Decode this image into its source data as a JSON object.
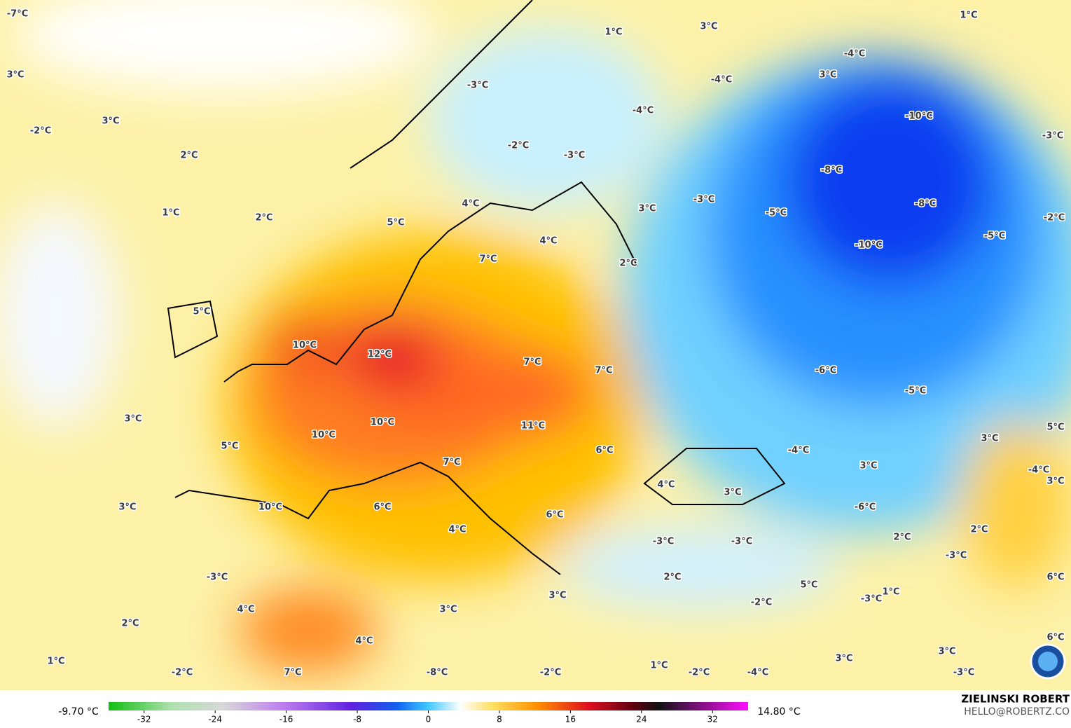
{
  "map": {
    "labels": [
      "-7°C",
      "3°C",
      "-2°C",
      "3°C",
      "2°C",
      "1°C",
      "2°C",
      "1°C",
      "3°C",
      "1°C",
      "-4°C",
      "-3°C",
      "-4°C",
      "3°C",
      "-4°C",
      "-10°C",
      "-2°C",
      "-3°C",
      "-3°C",
      "-8°C",
      "4°C",
      "5°C",
      "-3°C",
      "3°C",
      "-5°C",
      "-8°C",
      "-2°C",
      "4°C",
      "-5°C",
      "-10°C",
      "7°C",
      "2°C",
      "5°C",
      "10°C",
      "12°C",
      "7°C",
      "7°C",
      "-6°C",
      "-5°C",
      "3°C",
      "10°C",
      "11°C",
      "5°C",
      "10°C",
      "5°C",
      "6°C",
      "-4°C",
      "3°C",
      "3°C",
      "-4°C",
      "7°C",
      "3°C",
      "4°C",
      "3°C",
      "3°C",
      "10°C",
      "6°C",
      "-6°C",
      "6°C",
      "4°C",
      "2°C",
      "2°C",
      "-3°C",
      "-3°C",
      "-3°C",
      "-3°C",
      "2°C",
      "6°C",
      "5°C",
      "3°C",
      "-3°C",
      "1°C",
      "-2°C",
      "4°C",
      "3°C",
      "2°C",
      "6°C",
      "4°C",
      "3°C",
      "1°C",
      "1°C",
      "3°C",
      "-2°C",
      "7°C",
      "-8°C",
      "-2°C",
      "-2°C",
      "-4°C",
      "-3°C"
    ]
  },
  "colorbar": {
    "ticks": [
      -32,
      -24,
      -16,
      -8,
      0,
      8,
      16,
      24,
      32
    ],
    "range": [
      -36,
      36
    ],
    "min_label": "-9.70 °C",
    "max_label": "14.80 °C"
  },
  "credits": {
    "author": "ZIELINSKI ROBERT",
    "contact": "HELLO@ROBERTZ.CO"
  }
}
